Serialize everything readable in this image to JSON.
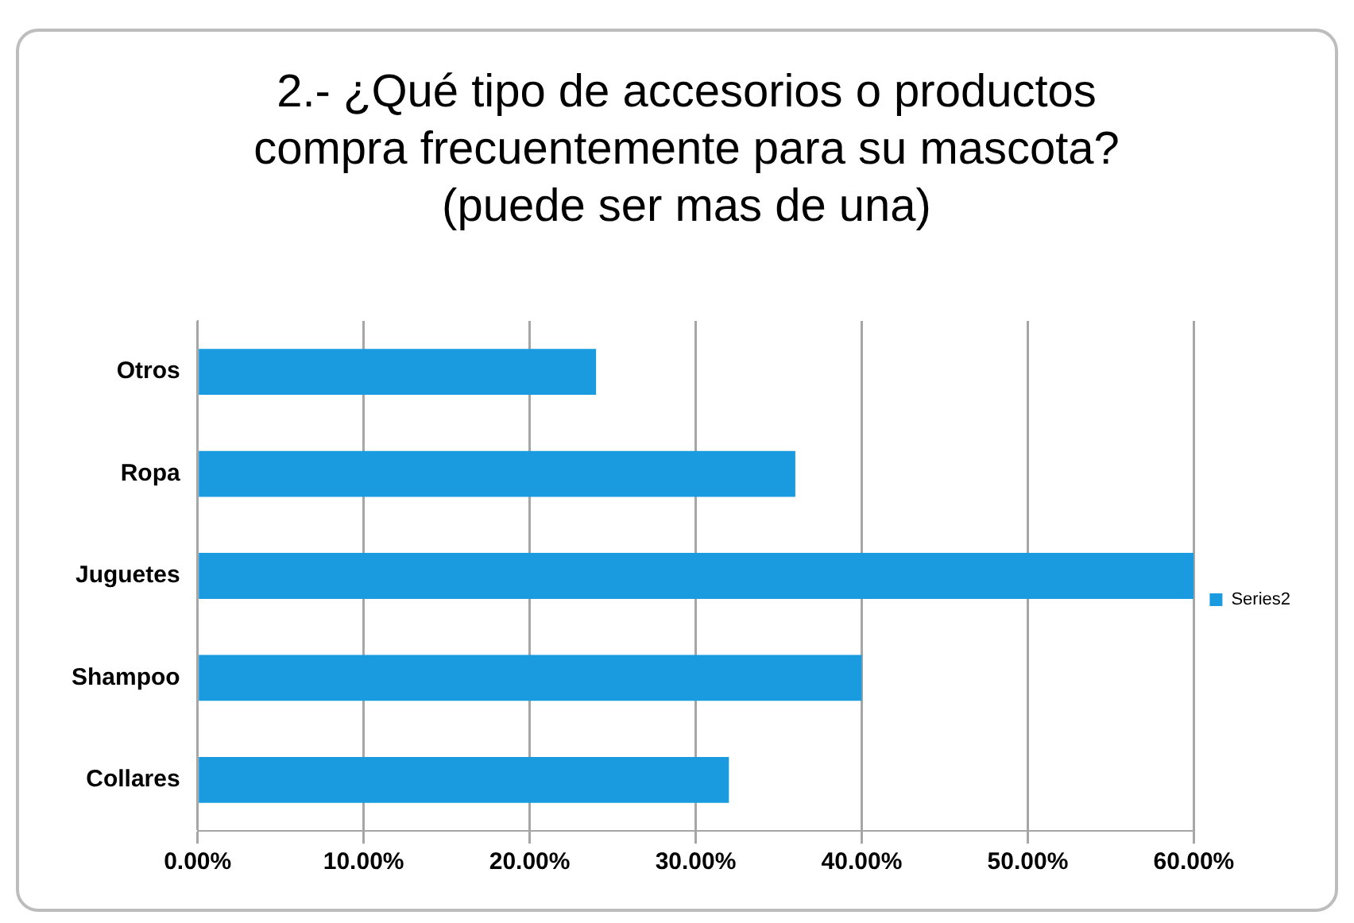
{
  "chart_data": {
    "type": "bar",
    "orientation": "horizontal",
    "title": "2.- ¿Qué tipo de accesorios o productos compra frecuentemente para su mascota? (puede ser mas de una)",
    "categories": [
      "Otros",
      "Ropa",
      "Juguetes",
      "Shampoo",
      "Collares"
    ],
    "series": [
      {
        "name": "Series2",
        "color": "#1a9be0",
        "values": [
          24,
          36,
          60,
          40,
          32
        ]
      }
    ],
    "xlim": [
      0,
      60
    ],
    "xticks": [
      {
        "value": 0,
        "label": "0.00%"
      },
      {
        "value": 10,
        "label": "10.00%"
      },
      {
        "value": 20,
        "label": "20.00%"
      },
      {
        "value": 30,
        "label": "30.00%"
      },
      {
        "value": 40,
        "label": "40.00%"
      },
      {
        "value": 50,
        "label": "50.00%"
      },
      {
        "value": 60,
        "label": "60.00%"
      }
    ],
    "grid": "x",
    "legend": "right"
  }
}
